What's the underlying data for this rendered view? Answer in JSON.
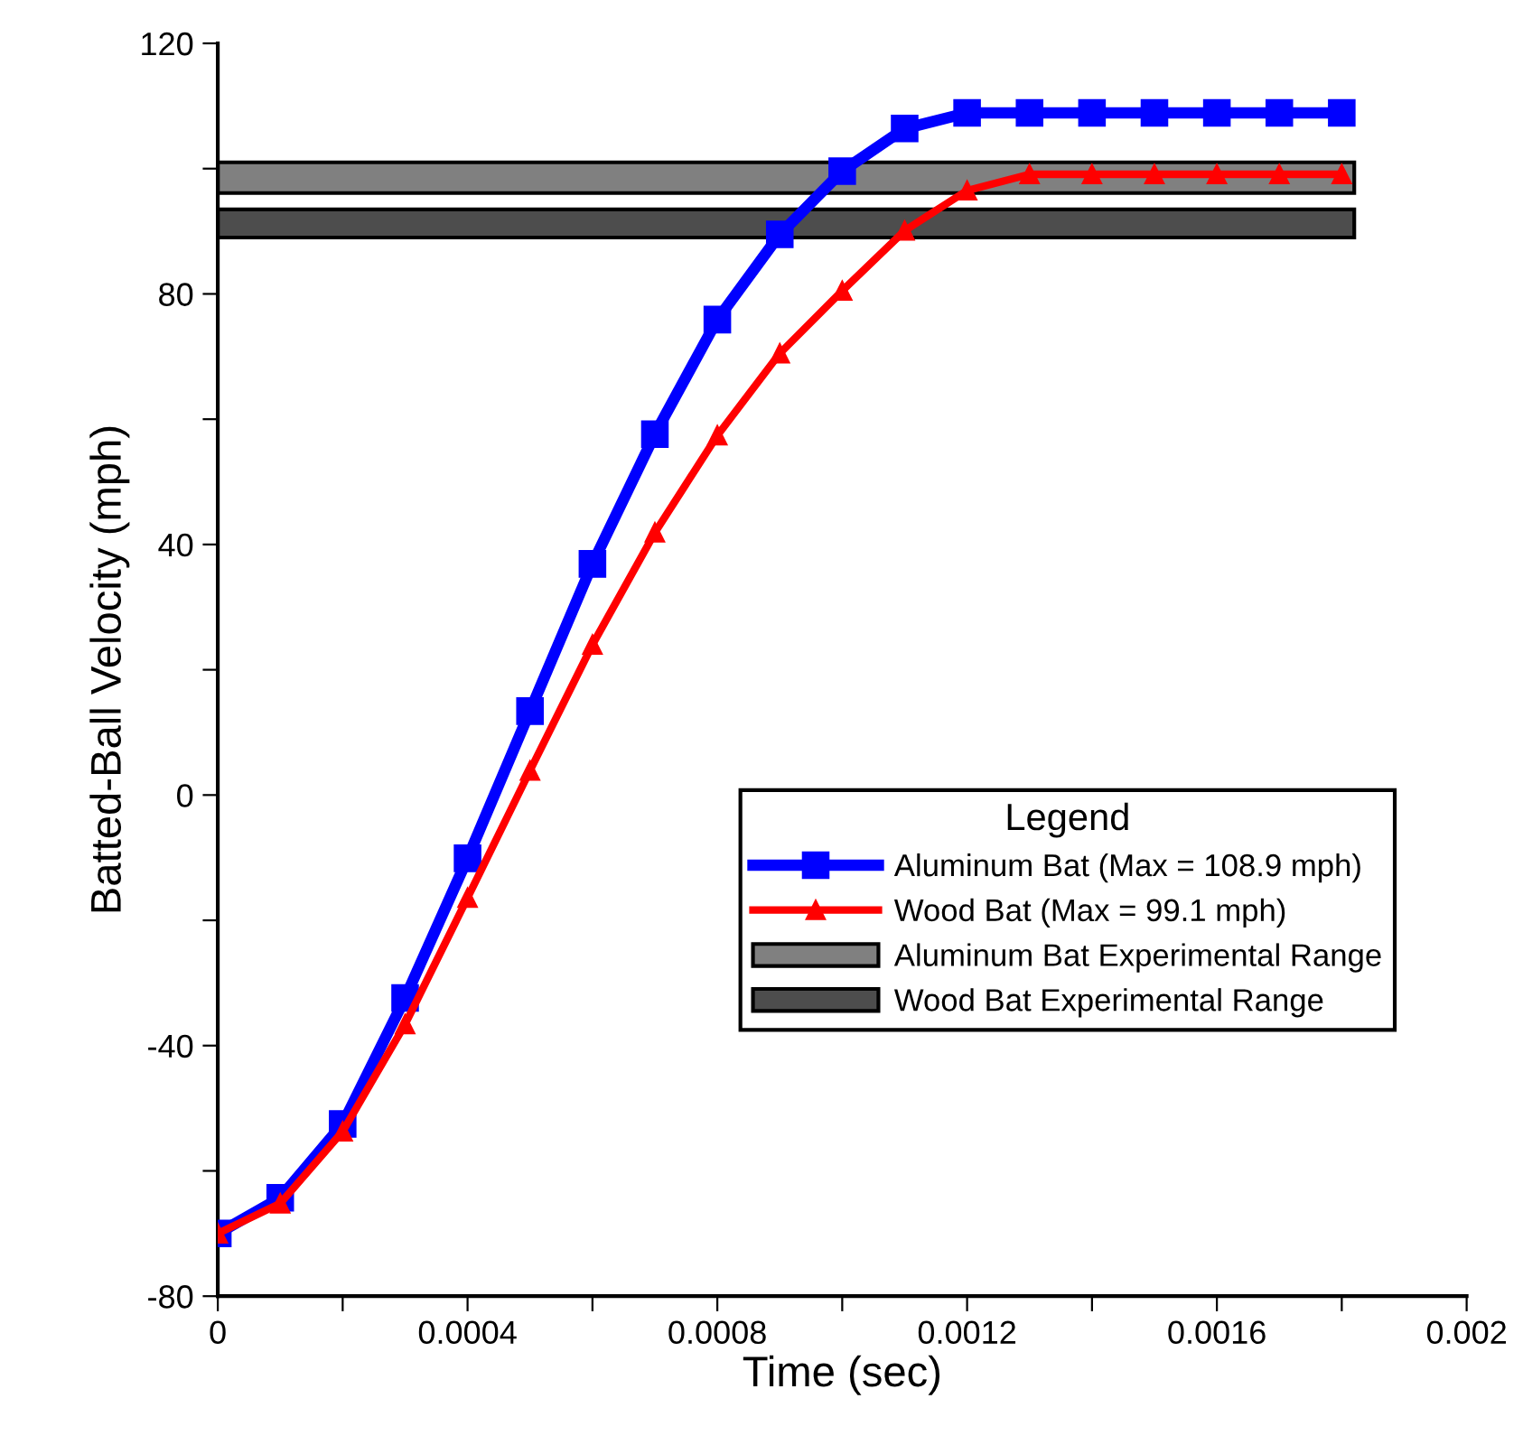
{
  "chart_data": {
    "type": "line",
    "xlabel": "Time (sec)",
    "ylabel": "Batted-Ball Velocity (mph)",
    "legend_title": "Legend",
    "legend": "bottom right",
    "grid": false,
    "x": [
      0,
      0.0001,
      0.0002,
      0.0003,
      0.0004,
      0.0005,
      0.0006,
      0.0007,
      0.0008,
      0.0009,
      0.001,
      0.0011,
      0.0012,
      0.0013,
      0.0014,
      0.0015,
      0.0016,
      0.0017,
      0.0018
    ],
    "series": [
      {
        "name": "Aluminum Bat (Max = 108.9 mph)",
        "color": "#0000ff",
        "marker": "square",
        "values": [
          -70,
          -64.3,
          -52.5,
          -32.4,
          -10.1,
          13.4,
          36.9,
          57.6,
          75.9,
          89.5,
          99.6,
          106.4,
          108.9,
          108.9,
          108.9,
          108.9,
          108.9,
          108.9,
          108.9
        ]
      },
      {
        "name": "Wood Bat (Max = 99.1 mph)",
        "color": "#ff0000",
        "marker": "triangle",
        "values": [
          -70,
          -65.2,
          -53.7,
          -36.6,
          -16.4,
          3.9,
          24,
          41.9,
          57.4,
          70.5,
          80.5,
          90.1,
          96.5,
          99.1,
          99.1,
          99.1,
          99.1,
          99.1,
          99.1
        ]
      }
    ],
    "bands": [
      {
        "axis": "y",
        "from": 96.1,
        "to": 101,
        "label": "Aluminum Bat Experimental Range",
        "color": "#808080"
      },
      {
        "axis": "y",
        "from": 89,
        "to": 93.5,
        "label": "Wood Bat Experimental Range",
        "color": "#4d4d4d"
      }
    ],
    "xlim": [
      0,
      0.002
    ],
    "xticks": [
      0,
      {
        "value": 0.0002,
        "label": null
      },
      0.0004,
      {
        "value": 0.0006,
        "label": null
      },
      0.0008,
      {
        "value": 0.001,
        "label": null
      },
      0.0012,
      {
        "value": 0.0014,
        "label": null
      },
      0.0016,
      {
        "value": 0.0018,
        "label": null
      },
      0.002
    ],
    "ylim": [
      -80,
      120
    ],
    "yticks": [
      -80,
      {
        "value": -60,
        "label": null
      },
      -40,
      {
        "value": -20,
        "label": null
      },
      0,
      {
        "value": 20,
        "label": null
      },
      40,
      {
        "value": 60,
        "label": null
      },
      80,
      {
        "value": 100,
        "label": null
      },
      120
    ]
  }
}
